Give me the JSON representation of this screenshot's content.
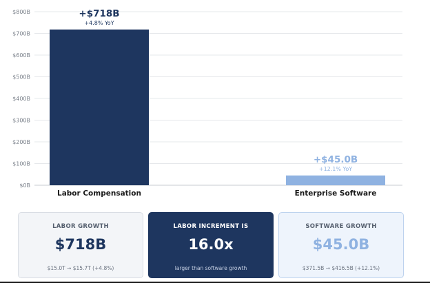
{
  "chart_data": {
    "type": "bar",
    "categories": [
      "Labor Compensation",
      "Enterprise Software"
    ],
    "values": [
      718,
      45.0
    ],
    "colors": [
      "#1e365f",
      "#8fb2e1"
    ],
    "value_labels": [
      "+$718B",
      "+$45.0B"
    ],
    "yoy_labels": [
      "+4.8% YoY",
      "+12.1% YoY"
    ],
    "ylim": [
      0,
      800
    ],
    "yticks": [
      0,
      100,
      200,
      300,
      400,
      500,
      600,
      700,
      800
    ],
    "ytick_labels": [
      "$0B",
      "$100B",
      "$200B",
      "$300B",
      "$400B",
      "$500B",
      "$600B",
      "$700B",
      "$800B"
    ],
    "grid": true,
    "title": "",
    "xlabel": "",
    "ylabel": ""
  },
  "cards": {
    "labor": {
      "label": "LABOR GROWTH",
      "value": "$718B",
      "detail": "$15.0T → $15.7T (+4.8%)"
    },
    "ratio": {
      "label": "LABOR INCREMENT IS",
      "value": "16.0x",
      "detail": "larger than software growth"
    },
    "software": {
      "label": "SOFTWARE GROWTH",
      "value": "$45.0B",
      "detail": "$371.5B → $416.5B (+12.1%)"
    }
  }
}
